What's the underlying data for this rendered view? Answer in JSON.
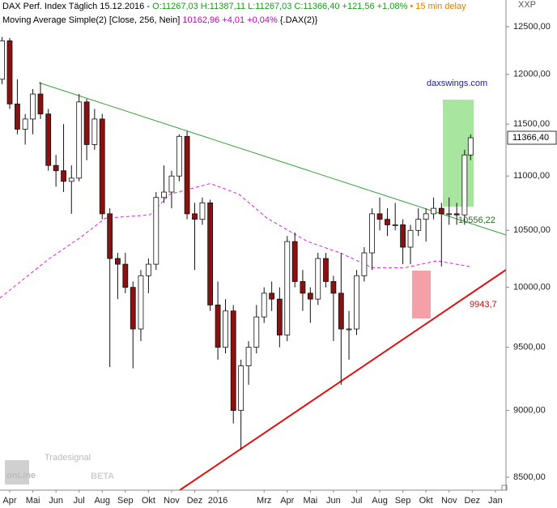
{
  "chart_data": {
    "type": "candlestick",
    "header_symbol": "DAX Perf. Index Täglich 15.12.2016 -",
    "header_ohlc": "O:11267,03 H:11387,11 L:11267,03 C:11366,40 +121,56 +1,08%",
    "header_delay": "• 15 min delay",
    "indicator_name": "Moving Average Simple(2) [Close, 256, Nein]",
    "indicator_value": "10162,96 +4,01 +0,04%",
    "indicator_source": "{.DAX(2)}",
    "axis_unit": "XXP",
    "watermark_small": "Tradesignal",
    "watermark_main": "onLine",
    "watermark_beta": "BETA",
    "annotations": [
      "daxswings.com",
      "10556,22",
      "9943,7"
    ],
    "last_price_label": "11366,40",
    "log_y": true,
    "ylim": [
      8406,
      12789
    ],
    "yticks": [
      {
        "value": 12500,
        "label": "12500,00"
      },
      {
        "value": 12000,
        "label": "12000,00"
      },
      {
        "value": 11500,
        "label": "11500,00"
      },
      {
        "value": 11000,
        "label": "11000,00"
      },
      {
        "value": 10500,
        "label": "10500,00"
      },
      {
        "value": 10000,
        "label": "10000,00"
      },
      {
        "value": 9500,
        "label": "9500,00"
      },
      {
        "value": 9000,
        "label": "9000,00"
      },
      {
        "value": 8500,
        "label": "8500,00"
      }
    ],
    "xlim": [
      0.08,
      21.96
    ],
    "xticks": [
      {
        "value": 0.5,
        "label": "Apr"
      },
      {
        "value": 1.5,
        "label": "Mai"
      },
      {
        "value": 2.5,
        "label": "Jun"
      },
      {
        "value": 3.5,
        "label": "Jul"
      },
      {
        "value": 4.5,
        "label": "Aug"
      },
      {
        "value": 5.5,
        "label": "Sep"
      },
      {
        "value": 6.5,
        "label": "Okt"
      },
      {
        "value": 7.5,
        "label": "Nov"
      },
      {
        "value": 8.5,
        "label": "Dez"
      },
      {
        "value": 9.5,
        "label": "2016"
      },
      {
        "value": 11.5,
        "label": "Mrz"
      },
      {
        "value": 12.5,
        "label": "Apr"
      },
      {
        "value": 13.5,
        "label": "Mai"
      },
      {
        "value": 14.5,
        "label": "Jun"
      },
      {
        "value": 15.5,
        "label": "Jul"
      },
      {
        "value": 16.5,
        "label": "Aug"
      },
      {
        "value": 17.5,
        "label": "Sep"
      },
      {
        "value": 18.5,
        "label": "Okt"
      },
      {
        "value": 19.5,
        "label": "Nov"
      },
      {
        "value": 20.5,
        "label": "Dez"
      },
      {
        "value": 21.5,
        "label": "Jan"
      }
    ],
    "up_color": "#ffffff",
    "down_color": "#8b1010",
    "x": [
      0.17,
      0.5,
      0.83,
      1.17,
      1.5,
      1.83,
      2.17,
      2.5,
      2.83,
      3.17,
      3.5,
      3.83,
      4.17,
      4.5,
      4.83,
      5.17,
      5.5,
      5.83,
      6.17,
      6.5,
      6.83,
      7.17,
      7.5,
      7.83,
      8.17,
      8.5,
      8.83,
      9.17,
      9.5,
      9.83,
      10.17,
      10.5,
      10.83,
      11.17,
      11.5,
      11.83,
      12.17,
      12.5,
      12.83,
      13.17,
      13.5,
      13.83,
      14.17,
      14.5,
      14.83,
      15.17,
      15.5,
      15.83,
      16.17,
      16.5,
      16.83,
      17.17,
      17.5,
      17.83,
      18.17,
      18.5,
      18.83,
      19.17,
      19.5,
      19.83,
      20.17,
      20.43
    ],
    "open": [
      11950,
      12350,
      11700,
      11450,
      11550,
      11800,
      11600,
      11100,
      11050,
      10950,
      10980,
      11720,
      11300,
      11550,
      10650,
      10250,
      10200,
      10000,
      9650,
      10100,
      10200,
      10800,
      10850,
      11000,
      11380,
      10650,
      10600,
      10750,
      9850,
      9500,
      9800,
      9000,
      9350,
      9500,
      9750,
      9950,
      9900,
      9600,
      10400,
      10050,
      9950,
      9900,
      10250,
      10050,
      9950,
      9650,
      9650,
      10100,
      10300,
      10650,
      10600,
      10550,
      10550,
      10350,
      10500,
      10600,
      10650,
      10700,
      10650,
      10650,
      10640,
      11200
    ],
    "high": [
      12390,
      12380,
      11950,
      11600,
      11850,
      11920,
      11650,
      11200,
      11500,
      11100,
      11800,
      11750,
      11650,
      11600,
      10700,
      10300,
      10300,
      10050,
      10150,
      10250,
      10850,
      11100,
      11050,
      11400,
      11430,
      10750,
      10800,
      10780,
      10050,
      9900,
      9850,
      9400,
      9550,
      9850,
      10000,
      10050,
      10000,
      10450,
      10480,
      10150,
      10000,
      10300,
      10300,
      10100,
      10300,
      9800,
      10150,
      10350,
      10700,
      10800,
      10700,
      10750,
      10600,
      10550,
      10700,
      10700,
      10800,
      10750,
      10800,
      10750,
      11250,
      11400
    ],
    "low": [
      11900,
      11650,
      11400,
      11300,
      11400,
      11550,
      11050,
      10900,
      10850,
      10650,
      10950,
      11150,
      11250,
      10600,
      9340,
      9900,
      9950,
      9330,
      9550,
      9950,
      10150,
      10750,
      10700,
      10950,
      10600,
      10150,
      10550,
      9800,
      9400,
      9450,
      8900,
      8700,
      9200,
      9450,
      9700,
      9800,
      9500,
      9550,
      10000,
      9800,
      9700,
      9850,
      10000,
      9550,
      9200,
      9400,
      9600,
      10050,
      10150,
      10500,
      10450,
      10500,
      10200,
      10200,
      10450,
      10400,
      10600,
      10180,
      10550,
      10550,
      10550,
      11150
    ],
    "close": [
      12350,
      11700,
      11450,
      11550,
      11800,
      11600,
      11100,
      11050,
      10950,
      10980,
      11720,
      11300,
      11550,
      10650,
      10250,
      10200,
      10000,
      9650,
      10100,
      10200,
      10800,
      10850,
      11000,
      11380,
      10650,
      10600,
      10750,
      9850,
      9500,
      9800,
      9000,
      9350,
      9500,
      9750,
      9950,
      9900,
      9600,
      10400,
      10050,
      9950,
      9900,
      10250,
      10050,
      9950,
      9650,
      9650,
      10100,
      10300,
      10650,
      10600,
      10550,
      10550,
      10350,
      10500,
      10600,
      10650,
      10700,
      10650,
      10650,
      10640,
      11200,
      11366.4
    ],
    "moving_average": {
      "color": "#e020e0",
      "x": [
        0.08,
        2.18,
        3.58,
        4.63,
        6.56,
        7.43,
        9.18,
        10.41,
        11.63,
        13.38,
        14.78,
        16.18,
        17.58,
        18.98,
        20.38
      ],
      "values": [
        9910,
        10244,
        10440,
        10610,
        10640,
        10830,
        10930,
        10830,
        10610,
        10400,
        10300,
        10170,
        10170,
        10230,
        10180
      ]
    }
  }
}
